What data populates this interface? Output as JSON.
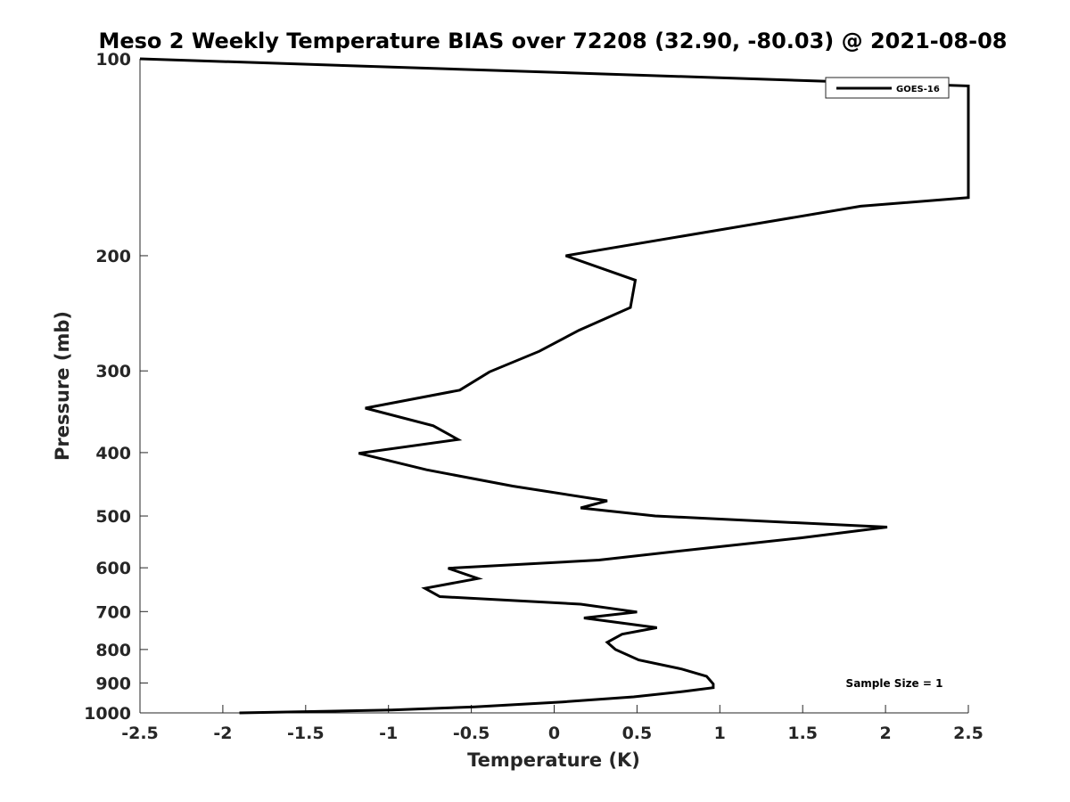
{
  "chart_data": {
    "type": "line",
    "title": "Meso 2 Weekly Temperature BIAS over 72208 (32.90, -80.03) @ 2021-08-08",
    "xlabel": "Temperature (K)",
    "ylabel": "Pressure (mb)",
    "xlim": [
      -2.5,
      2.5
    ],
    "ylim": [
      100,
      1000
    ],
    "y_scale": "log",
    "y_reversed": true,
    "x_ticks": [
      -2.5,
      -2,
      -1.5,
      -1,
      -0.5,
      0,
      0.5,
      1,
      1.5,
      2,
      2.5
    ],
    "x_tick_labels": [
      "-2.5",
      "-2",
      "-1.5",
      "-1",
      "-0.5",
      "0",
      "0.5",
      "1",
      "1.5",
      "2",
      "2.5"
    ],
    "y_ticks": [
      100,
      200,
      300,
      400,
      500,
      600,
      700,
      800,
      900,
      1000
    ],
    "y_tick_labels": [
      "100",
      "200",
      "300",
      "400",
      "500",
      "600",
      "700",
      "800",
      "900",
      "1000"
    ],
    "grid": false,
    "legend_position": "top-right",
    "annotation": "Sample Size = 1",
    "series": [
      {
        "name": "GOES-16",
        "color": "#000000",
        "points": [
          {
            "x": -2.5,
            "y": 100
          },
          {
            "x": 2.5,
            "y": 110
          },
          {
            "x": 2.5,
            "y": 163
          },
          {
            "x": 1.85,
            "y": 168
          },
          {
            "x": 0.07,
            "y": 200
          },
          {
            "x": 0.49,
            "y": 218
          },
          {
            "x": 0.46,
            "y": 240
          },
          {
            "x": 0.15,
            "y": 260
          },
          {
            "x": -0.09,
            "y": 280
          },
          {
            "x": -0.39,
            "y": 301
          },
          {
            "x": -0.57,
            "y": 321
          },
          {
            "x": -1.14,
            "y": 342
          },
          {
            "x": -0.73,
            "y": 364
          },
          {
            "x": -0.58,
            "y": 382
          },
          {
            "x": -1.18,
            "y": 401
          },
          {
            "x": -0.77,
            "y": 425
          },
          {
            "x": -0.25,
            "y": 450
          },
          {
            "x": 0.32,
            "y": 474
          },
          {
            "x": 0.16,
            "y": 486
          },
          {
            "x": 0.61,
            "y": 500
          },
          {
            "x": 2.01,
            "y": 520
          },
          {
            "x": 1.49,
            "y": 540
          },
          {
            "x": 0.91,
            "y": 560
          },
          {
            "x": 0.27,
            "y": 584
          },
          {
            "x": -0.64,
            "y": 601
          },
          {
            "x": -0.46,
            "y": 623
          },
          {
            "x": -0.78,
            "y": 645
          },
          {
            "x": -0.69,
            "y": 664
          },
          {
            "x": 0.16,
            "y": 682
          },
          {
            "x": 0.5,
            "y": 701
          },
          {
            "x": 0.18,
            "y": 716
          },
          {
            "x": 0.62,
            "y": 741
          },
          {
            "x": 0.41,
            "y": 758
          },
          {
            "x": 0.32,
            "y": 780
          },
          {
            "x": 0.37,
            "y": 800
          },
          {
            "x": 0.51,
            "y": 830
          },
          {
            "x": 0.77,
            "y": 857
          },
          {
            "x": 0.92,
            "y": 879
          },
          {
            "x": 0.96,
            "y": 903
          },
          {
            "x": 0.96,
            "y": 915
          },
          {
            "x": 0.79,
            "y": 927
          },
          {
            "x": 0.48,
            "y": 945
          },
          {
            "x": 0.05,
            "y": 962
          },
          {
            "x": -0.48,
            "y": 979
          },
          {
            "x": -0.98,
            "y": 990
          },
          {
            "x": -1.9,
            "y": 1000
          }
        ]
      }
    ]
  }
}
